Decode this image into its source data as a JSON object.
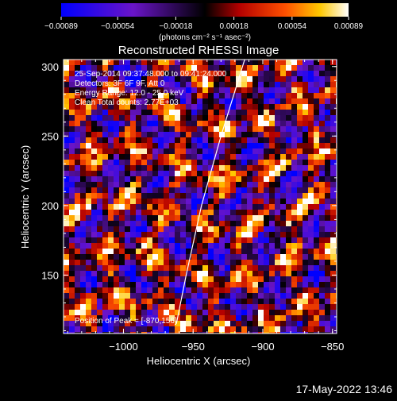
{
  "chart_data": {
    "type": "heatmap",
    "title": "Reconstructed RHESSI Image",
    "xlabel": "Heliocentric X (arcsec)",
    "ylabel": "Heliocentric Y (arcsec)",
    "xlim": [
      -1043,
      -847
    ],
    "ylim": [
      108,
      305
    ],
    "xticks": [
      -1000,
      -950,
      -900,
      -850
    ],
    "xtick_labels": [
      "−1000",
      "−950",
      "−900",
      "−850"
    ],
    "yticks": [
      150,
      200,
      250,
      300
    ],
    "ytick_labels": [
      "150",
      "200",
      "250",
      "300"
    ],
    "colorbar": {
      "range": [
        -0.00089,
        0.00089
      ],
      "ticks": [
        -0.00089,
        -0.00054,
        -0.00018,
        0.00018,
        0.00054,
        0.00089
      ],
      "tick_labels": [
        "−0.00089",
        "−0.00054",
        "−0.00018",
        "0.00018",
        "0.00054",
        "0.00089"
      ],
      "unit_label": "(photons cm⁻² s⁻¹ asec⁻²)"
    },
    "annotations": [
      "25-Sep-2014 09:37:48.000 to 09:41:24.000",
      "Detectors: 3F 6F 9F, Att 0",
      "Energy Range: 12.0 - 25.0 keV",
      "Clean    Total counts: 2.77E+03"
    ],
    "peak_label": "Position of Peak = [-870,156]",
    "limb": [
      [
        -913,
        305
      ],
      [
        -930,
        250
      ],
      [
        -944,
        200
      ],
      [
        -955,
        150
      ],
      [
        -962,
        115
      ]
    ]
  },
  "timestamp": "17-May-2022 13:46"
}
